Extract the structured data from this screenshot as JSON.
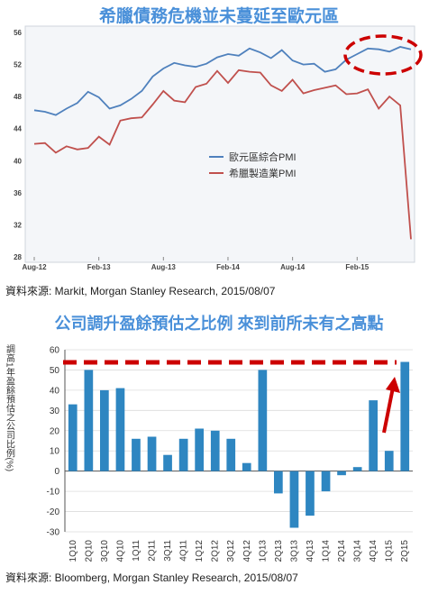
{
  "colors": {
    "title": "#4a90d9",
    "pmi_composite": "#4f81bd",
    "pmi_manufacturing": "#c0504d",
    "bar": "#2e86c1",
    "highlight": "#cc0000"
  },
  "chart_data": [
    {
      "type": "line",
      "title": "希臘債務危機並未蔓延至歐元區",
      "xlabel": "",
      "ylabel": "",
      "ylim": [
        28,
        56
      ],
      "yticks": [
        "56",
        "52",
        "48",
        "44",
        "40",
        "36",
        "32",
        "28"
      ],
      "xticks": [
        "Aug-12",
        "Feb-13",
        "Aug-13",
        "Feb-14",
        "Aug-14",
        "Feb-15"
      ],
      "x": [
        "2012-08",
        "2012-09",
        "2012-10",
        "2012-11",
        "2012-12",
        "2013-01",
        "2013-02",
        "2013-03",
        "2013-04",
        "2013-05",
        "2013-06",
        "2013-07",
        "2013-08",
        "2013-09",
        "2013-10",
        "2013-11",
        "2013-12",
        "2014-01",
        "2014-02",
        "2014-03",
        "2014-04",
        "2014-05",
        "2014-06",
        "2014-07",
        "2014-08",
        "2014-09",
        "2014-10",
        "2014-11",
        "2014-12",
        "2015-01",
        "2015-02",
        "2015-03",
        "2015-04",
        "2015-05",
        "2015-06",
        "2015-07"
      ],
      "series": [
        {
          "name": "歐元區綜合PMI",
          "color": "#4f81bd",
          "values": [
            46.3,
            46.1,
            45.7,
            46.5,
            47.2,
            48.6,
            47.9,
            46.5,
            46.9,
            47.7,
            48.7,
            50.5,
            51.5,
            52.2,
            51.9,
            51.7,
            52.1,
            52.9,
            53.3,
            53.1,
            54.0,
            53.5,
            52.8,
            53.8,
            52.5,
            52.0,
            52.1,
            51.1,
            51.4,
            52.6,
            53.3,
            54.0,
            53.9,
            53.6,
            54.2,
            53.9
          ]
        },
        {
          "name": "希臘製造業PMI",
          "color": "#c0504d",
          "values": [
            42.1,
            42.2,
            41.0,
            41.8,
            41.4,
            41.6,
            43.0,
            42.0,
            45.0,
            45.3,
            45.4,
            47.0,
            48.7,
            47.5,
            47.3,
            49.2,
            49.6,
            51.2,
            49.7,
            51.3,
            51.1,
            51.0,
            49.4,
            48.7,
            50.1,
            48.4,
            48.8,
            49.1,
            49.4,
            48.3,
            48.4,
            48.9,
            46.5,
            48.0,
            46.9,
            30.2
          ]
        }
      ],
      "source": "資料來源: Markit, Morgan Stanley Research, 2015/08/07"
    },
    {
      "type": "bar",
      "title": "公司調升盈餘預估之比例 來到前所未有之高點",
      "xlabel": "",
      "ylabel": "調高1年盈餘預估之公司比例(%)",
      "ylim": [
        -30,
        60
      ],
      "yticks": [
        "60",
        "50",
        "40",
        "30",
        "20",
        "10",
        "0",
        "-10",
        "-20",
        "-30"
      ],
      "categories": [
        "1Q10",
        "2Q10",
        "3Q10",
        "4Q10",
        "1Q11",
        "2Q11",
        "3Q11",
        "4Q11",
        "1Q12",
        "2Q12",
        "3Q12",
        "4Q12",
        "1Q13",
        "2Q13",
        "3Q13",
        "4Q13",
        "1Q14",
        "2Q14",
        "3Q14",
        "4Q14",
        "1Q15",
        "2Q15"
      ],
      "values": [
        33,
        50,
        40,
        41,
        16,
        17,
        8,
        16,
        21,
        20,
        16,
        4,
        50,
        -11,
        -28,
        -22,
        -10,
        -2,
        2,
        35,
        10,
        54
      ],
      "source": "資料來源: Bloomberg, Morgan Stanley Research, 2015/08/07"
    }
  ]
}
